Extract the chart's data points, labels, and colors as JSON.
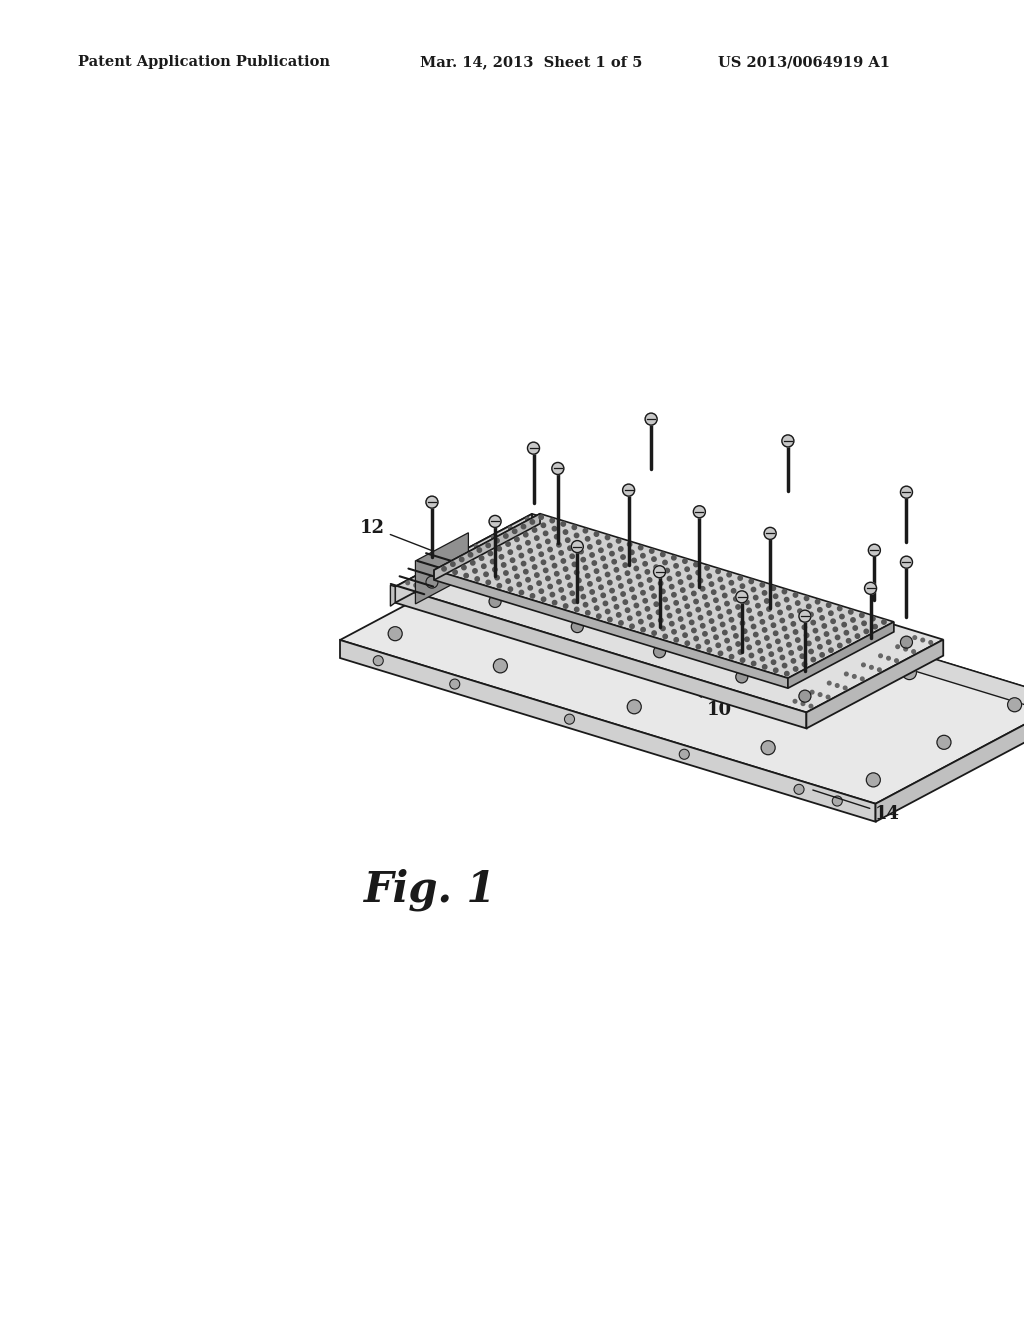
{
  "background_color": "#ffffff",
  "header_left": "Patent Application Publication",
  "header_mid": "Mar. 14, 2013  Sheet 1 of 5",
  "header_right": "US 2013/0064919 A1",
  "caption": "Fig. 1",
  "label_10": "10",
  "label_12": "12",
  "label_14": "14",
  "line_color": "#1a1a1a",
  "face_light": "#efefef",
  "face_mid": "#d8d8d8",
  "face_dark": "#c0c0c0",
  "face_darker": "#a8a8a8",
  "dot_color": "#555555"
}
